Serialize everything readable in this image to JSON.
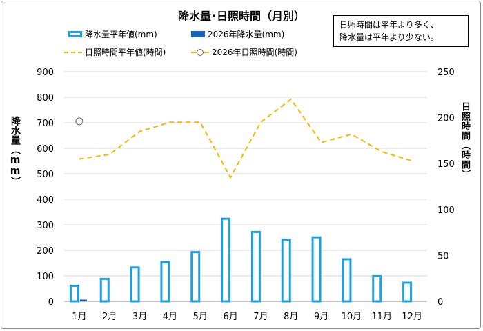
{
  "chart_data": {
    "type": "bar",
    "title": "降水量･日照時間（月別）",
    "note_lines": [
      "日照時間は平年より多く、",
      "降水量は平年より少ない。"
    ],
    "categories": [
      "1月",
      "2月",
      "3月",
      "4月",
      "5月",
      "6月",
      "7月",
      "8月",
      "9月",
      "10月",
      "11月",
      "12月"
    ],
    "series": [
      {
        "name": "降水量平年値(mm)",
        "type": "bar",
        "axis": "left",
        "color": "#1ba1e2",
        "values": [
          65,
          92,
          137,
          158,
          197,
          328,
          276,
          246,
          255,
          169,
          103,
          77
        ]
      },
      {
        "name": "2026年降水量(mm)",
        "type": "bar",
        "axis": "left",
        "color": "#1565c0",
        "values": [
          7,
          null,
          null,
          null,
          null,
          null,
          null,
          null,
          null,
          null,
          null,
          null
        ]
      },
      {
        "name": "日照時間平年値(時間)",
        "type": "line",
        "axis": "right",
        "color": "#f5b800",
        "values": [
          155,
          160,
          185,
          195,
          195,
          135,
          195,
          220,
          173,
          182,
          163,
          153
        ]
      },
      {
        "name": "2026年日照時間(時間)",
        "type": "line",
        "axis": "right",
        "color": "#f5b800",
        "values": [
          196,
          null,
          null,
          null,
          null,
          null,
          null,
          null,
          null,
          null,
          null,
          null
        ]
      }
    ],
    "ylabel": "降水量（mm）",
    "y2label": "日照時間（時間）",
    "ylim": [
      0,
      900
    ],
    "y2lim": [
      0,
      250
    ],
    "yticks": [
      0,
      100,
      200,
      300,
      400,
      500,
      600,
      700,
      800,
      900
    ],
    "y2ticks": [
      0,
      50,
      100,
      150,
      200,
      250
    ],
    "grid": true,
    "legend": "top"
  }
}
